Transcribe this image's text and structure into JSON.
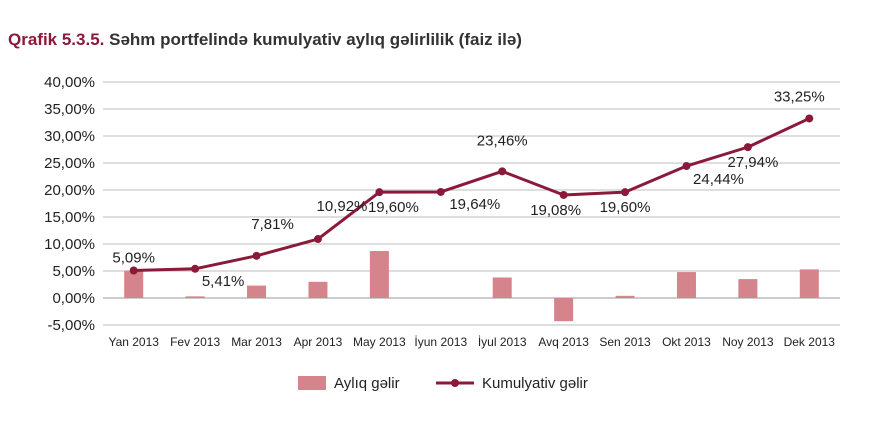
{
  "title": {
    "prefix": "Qrafik 5.3.5.",
    "text": "Səhm portfelində kumulyativ aylıq gəlirlilik (faiz ilə)"
  },
  "chart_data": {
    "type": "bar",
    "categories": [
      "Yan 2013",
      "Fev 2013",
      "Mar 2013",
      "Apr 2013",
      "May 2013",
      "İyun 2013",
      "İyul 2013",
      "Avq 2013",
      "Sen 2013",
      "Okt 2013",
      "Noy 2013",
      "Dek 2013"
    ],
    "series": [
      {
        "name": "Aylıq gəlir",
        "type": "bar",
        "color": "#d4848a",
        "values": [
          5.09,
          0.3,
          2.3,
          3.0,
          8.7,
          0.0,
          3.8,
          -4.3,
          0.4,
          4.8,
          3.5,
          5.3
        ]
      },
      {
        "name": "Kumulyativ gəlir",
        "type": "line",
        "color": "#8b1a3a",
        "values": [
          5.09,
          5.41,
          7.81,
          10.92,
          19.6,
          19.64,
          23.46,
          19.08,
          19.6,
          24.44,
          27.94,
          33.25
        ],
        "labels": [
          "5,09%",
          "5,41%",
          "7,81%",
          "10,92%",
          "19,60%",
          "19,64%",
          "23,46%",
          "19,08%",
          "19,60%",
          "24,44%",
          "27,94%",
          "33,25%"
        ]
      }
    ],
    "ylim": [
      -5,
      40
    ],
    "yticks": [
      -5,
      0,
      5,
      10,
      15,
      20,
      25,
      30,
      35,
      40
    ],
    "ytick_labels": [
      "-5,00%",
      "0,00%",
      "5,00%",
      "10,00%",
      "15,00%",
      "20,00%",
      "25,00%",
      "30,00%",
      "35,00%",
      "40,00%"
    ],
    "grid": true,
    "legend": "bottom-center"
  }
}
